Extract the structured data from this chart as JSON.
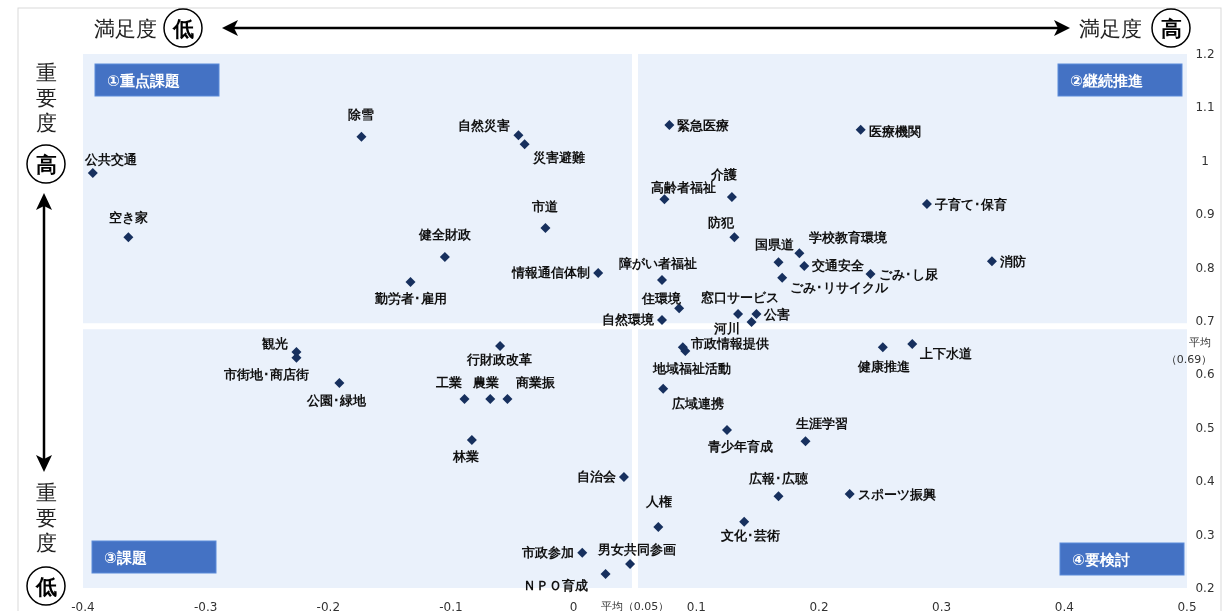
{
  "chart_data": {
    "type": "scatter",
    "marker": "diamond",
    "grid": false,
    "xlim": [
      -0.4,
      0.5
    ],
    "ylim": [
      0.2,
      1.2
    ],
    "xticks": [
      -0.4,
      -0.3,
      -0.2,
      -0.1,
      0,
      0.1,
      0.2,
      0.3,
      0.4,
      0.5
    ],
    "yticks": [
      0.2,
      0.3,
      0.4,
      0.5,
      0.6,
      0.7,
      0.8,
      0.9,
      1,
      1.1,
      1.2
    ],
    "ref_lines": [
      {
        "axis": "x",
        "value": 0.05,
        "label": "平均（0.05）",
        "color": "#ffffff"
      },
      {
        "axis": "y",
        "value": 0.69,
        "label": "平均（0.69）",
        "color": "#ffffff"
      }
    ],
    "series": [
      {
        "color": "#17305e",
        "x": [
          -0.392,
          -0.363,
          -0.173,
          -0.045,
          -0.04,
          -0.023,
          -0.105,
          -0.133,
          0.02,
          0.072,
          0.072,
          0.086,
          0.078,
          0.234,
          0.129,
          0.074,
          0.131,
          0.288,
          0.167,
          0.184,
          0.188,
          0.242,
          0.17,
          0.134,
          0.149,
          0.145,
          -0.226,
          -0.226,
          -0.191,
          -0.06,
          -0.089,
          -0.068,
          -0.054,
          -0.083,
          0.041,
          0.007,
          0.026,
          0.046,
          0.089,
          0.091,
          0.073,
          0.125,
          0.189,
          0.167,
          0.225,
          0.069,
          0.139,
          0.252,
          0.276,
          0.341
        ],
        "values": [
          0.977,
          0.857,
          1.045,
          1.048,
          1.031,
          0.874,
          0.82,
          0.773,
          0.79,
          0.777,
          0.702,
          0.724,
          1.067,
          1.058,
          0.932,
          0.928,
          0.857,
          0.919,
          0.81,
          0.827,
          0.803,
          0.788,
          0.781,
          0.713,
          0.713,
          0.698,
          0.642,
          0.631,
          0.584,
          0.653,
          0.554,
          0.554,
          0.554,
          0.477,
          0.408,
          0.266,
          0.226,
          0.245,
          0.651,
          0.644,
          0.573,
          0.496,
          0.475,
          0.372,
          0.376,
          0.314,
          0.324,
          0.651,
          0.657,
          0.812
        ]
      }
    ],
    "annotations": [
      "①重点課題",
      "②継続推進",
      "③課題",
      "④要検討",
      "満足度",
      "低",
      "満足度",
      "高",
      "重要度",
      "高",
      "重要度",
      "低",
      {
        "text": "公共交通",
        "x": -0.392,
        "y": 0.977
      },
      {
        "text": "空き家",
        "x": -0.363,
        "y": 0.857
      },
      {
        "text": "除雪",
        "x": -0.173,
        "y": 1.045
      },
      {
        "text": "自然災害",
        "x": -0.045,
        "y": 1.048
      },
      {
        "text": "災害避難",
        "x": -0.04,
        "y": 1.031
      },
      {
        "text": "市道",
        "x": -0.023,
        "y": 0.874
      },
      {
        "text": "健全財政",
        "x": -0.105,
        "y": 0.82
      },
      {
        "text": "勤労者･雇用",
        "x": -0.133,
        "y": 0.773
      },
      {
        "text": "情報通信体制",
        "x": 0.02,
        "y": 0.79
      },
      {
        "text": "障がい者福祉",
        "x": 0.072,
        "y": 0.777
      },
      {
        "text": "自然環境",
        "x": 0.072,
        "y": 0.702
      },
      {
        "text": "住環境",
        "x": 0.086,
        "y": 0.724
      },
      {
        "text": "緊急医療",
        "x": 0.078,
        "y": 1.067
      },
      {
        "text": "医療機関",
        "x": 0.234,
        "y": 1.058
      },
      {
        "text": "介護",
        "x": 0.129,
        "y": 0.932
      },
      {
        "text": "高齢者福祉",
        "x": 0.074,
        "y": 0.928
      },
      {
        "text": "防犯",
        "x": 0.131,
        "y": 0.857
      },
      {
        "text": "子育て･保育",
        "x": 0.288,
        "y": 0.919
      },
      {
        "text": "国県道",
        "x": 0.167,
        "y": 0.81
      },
      {
        "text": "学校教育環境",
        "x": 0.184,
        "y": 0.827
      },
      {
        "text": "交通安全",
        "x": 0.188,
        "y": 0.803
      },
      {
        "text": "ごみ･し尿",
        "x": 0.242,
        "y": 0.788
      },
      {
        "text": "ごみ･リサイクル",
        "x": 0.17,
        "y": 0.781
      },
      {
        "text": "窓口サービス",
        "x": 0.134,
        "y": 0.713
      },
      {
        "text": "公害",
        "x": 0.149,
        "y": 0.713
      },
      {
        "text": "河川",
        "x": 0.145,
        "y": 0.698
      },
      {
        "text": "観光",
        "x": -0.226,
        "y": 0.642
      },
      {
        "text": "市街地･商店街",
        "x": -0.226,
        "y": 0.631
      },
      {
        "text": "公園･緑地",
        "x": -0.191,
        "y": 0.584
      },
      {
        "text": "行財政改革",
        "x": -0.06,
        "y": 0.653
      },
      {
        "text": "工業",
        "x": -0.089,
        "y": 0.554
      },
      {
        "text": "農業",
        "x": -0.068,
        "y": 0.554
      },
      {
        "text": "商業振",
        "x": -0.054,
        "y": 0.554
      },
      {
        "text": "林業",
        "x": -0.083,
        "y": 0.477
      },
      {
        "text": "自治会",
        "x": 0.041,
        "y": 0.408
      },
      {
        "text": "市政参加",
        "x": 0.007,
        "y": 0.266
      },
      {
        "text": "ＮＰＯ育成",
        "x": 0.026,
        "y": 0.226
      },
      {
        "text": "男女共同参画",
        "x": 0.046,
        "y": 0.245
      },
      {
        "text": "市政情報提供",
        "x": 0.089,
        "y": 0.651
      },
      {
        "text": "地域福祉活動",
        "x": 0.091,
        "y": 0.644
      },
      {
        "text": "広域連携",
        "x": 0.073,
        "y": 0.573
      },
      {
        "text": "青少年育成",
        "x": 0.125,
        "y": 0.496
      },
      {
        "text": "生涯学習",
        "x": 0.189,
        "y": 0.475
      },
      {
        "text": "広報･広聴",
        "x": 0.167,
        "y": 0.372
      },
      {
        "text": "スポーツ振興",
        "x": 0.225,
        "y": 0.376
      },
      {
        "text": "人権",
        "x": 0.069,
        "y": 0.314
      },
      {
        "text": "文化･芸術",
        "x": 0.139,
        "y": 0.324
      },
      {
        "text": "健康推進",
        "x": 0.252,
        "y": 0.651
      },
      {
        "text": "上下水道",
        "x": 0.276,
        "y": 0.657
      },
      {
        "text": "消防",
        "x": 0.341,
        "y": 0.812
      }
    ]
  }
}
